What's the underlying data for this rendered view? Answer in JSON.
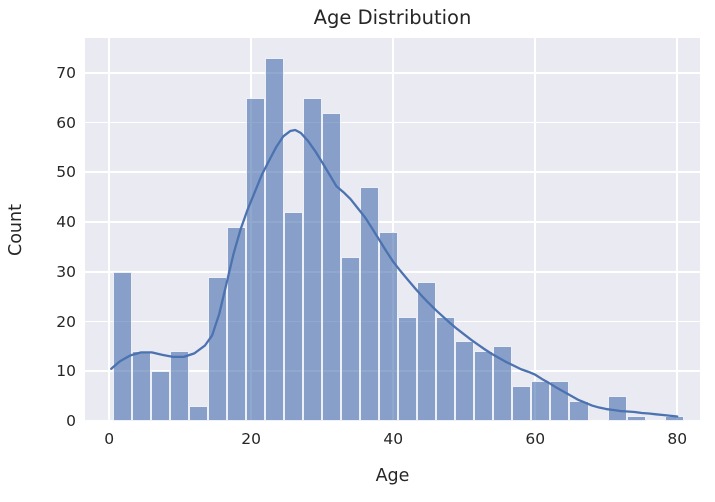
{
  "title": "Age Distribution",
  "xlabel": "Age",
  "ylabel": "Count",
  "x_ticks": [
    "0",
    "20",
    "40",
    "60",
    "80"
  ],
  "y_ticks": [
    "0",
    "10",
    "20",
    "30",
    "40",
    "50",
    "60",
    "70"
  ],
  "colors": {
    "figure_background": "#ffffff",
    "plot_background": "#eaeaf2",
    "grid": "#ffffff",
    "bar_fill": "#8ba2ca",
    "bar_fill_rgba": "rgba(76,114,176,0.62)",
    "bar_edge": "rgba(255,255,255,0.85)",
    "kde_line": "#4c72b0",
    "text": "#262626"
  },
  "chart_data": [
    {
      "type": "bar",
      "name": "age-histogram",
      "title": "Age Distribution",
      "xlabel": "Age",
      "ylabel": "Count",
      "bin_start": 0.5,
      "bin_width": 2.68,
      "counts": [
        30,
        14,
        10,
        14,
        3,
        29,
        39,
        65,
        73,
        42,
        65,
        62,
        33,
        47,
        38,
        21,
        28,
        21,
        16,
        14,
        15,
        7,
        8,
        8,
        4,
        0,
        5,
        1,
        0,
        1
      ],
      "x_tick_values": [
        0,
        20,
        40,
        60,
        80
      ],
      "y_tick_values": [
        0,
        10,
        20,
        30,
        40,
        50,
        60,
        70
      ],
      "xlim": [
        -3.4,
        83.2
      ],
      "ylim": [
        0,
        77
      ],
      "grid": "on",
      "legend": "none"
    },
    {
      "type": "line",
      "name": "kde-curve",
      "points": [
        [
          0.3,
          10.5
        ],
        [
          1.5,
          12.0
        ],
        [
          3,
          13.2
        ],
        [
          4.5,
          13.8
        ],
        [
          6,
          13.8
        ],
        [
          7.5,
          13.3
        ],
        [
          9,
          12.9
        ],
        [
          10.5,
          12.9
        ],
        [
          12,
          13.6
        ],
        [
          13.5,
          15.2
        ],
        [
          14.5,
          17.2
        ],
        [
          15.5,
          21.5
        ],
        [
          16.5,
          27.5
        ],
        [
          17.5,
          33.5
        ],
        [
          18.5,
          38.5
        ],
        [
          19.5,
          42.5
        ],
        [
          20.5,
          46.0
        ],
        [
          21.5,
          49.5
        ],
        [
          22.5,
          52.3
        ],
        [
          23.5,
          55.0
        ],
        [
          24.5,
          57.2
        ],
        [
          25.5,
          58.3
        ],
        [
          26.2,
          58.5
        ],
        [
          27,
          57.9
        ],
        [
          28,
          56.3
        ],
        [
          29,
          54.3
        ],
        [
          30,
          52.0
        ],
        [
          31,
          49.6
        ],
        [
          32,
          47.2
        ],
        [
          33,
          46.0
        ],
        [
          34,
          44.6
        ],
        [
          35,
          42.8
        ],
        [
          36,
          41.0
        ],
        [
          37,
          38.8
        ],
        [
          38,
          36.5
        ],
        [
          39,
          34.2
        ],
        [
          40,
          32.0
        ],
        [
          41,
          30.2
        ],
        [
          42,
          28.5
        ],
        [
          43,
          26.8
        ],
        [
          44,
          25.2
        ],
        [
          45,
          23.7
        ],
        [
          46,
          22.3
        ],
        [
          47,
          21.0
        ],
        [
          48,
          19.7
        ],
        [
          49,
          18.5
        ],
        [
          50,
          17.4
        ],
        [
          51,
          16.3
        ],
        [
          52,
          15.3
        ],
        [
          53,
          14.3
        ],
        [
          54,
          13.4
        ],
        [
          55,
          12.6
        ],
        [
          56,
          11.8
        ],
        [
          57,
          11.1
        ],
        [
          58,
          10.4
        ],
        [
          59,
          9.9
        ],
        [
          60,
          9.3
        ],
        [
          61,
          8.4
        ],
        [
          62,
          7.6
        ],
        [
          63,
          6.7
        ],
        [
          64,
          5.9
        ],
        [
          65,
          5.1
        ],
        [
          66,
          4.3
        ],
        [
          67,
          3.7
        ],
        [
          68,
          3.1
        ],
        [
          69,
          2.7
        ],
        [
          70,
          2.4
        ],
        [
          71,
          2.2
        ],
        [
          72,
          2.0
        ],
        [
          73,
          1.9
        ],
        [
          74,
          1.8
        ],
        [
          75,
          1.6
        ],
        [
          76,
          1.5
        ],
        [
          77,
          1.35
        ],
        [
          78,
          1.2
        ],
        [
          79,
          1.05
        ],
        [
          80,
          0.9
        ]
      ]
    }
  ]
}
